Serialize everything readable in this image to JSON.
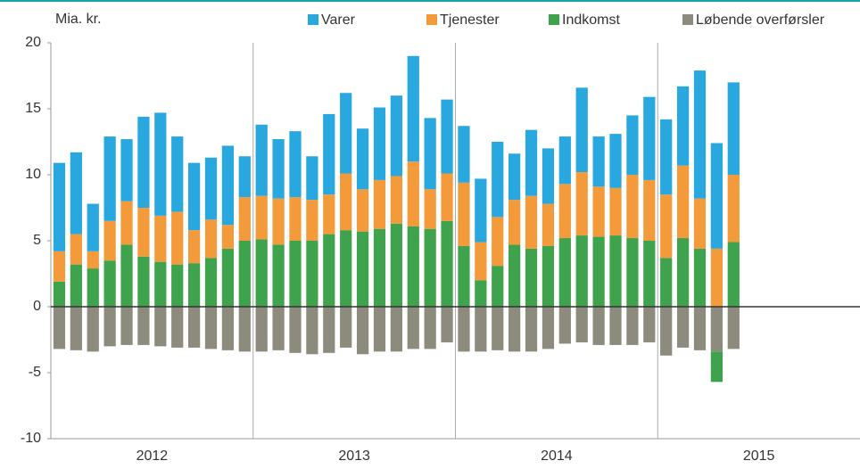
{
  "chart_data": {
    "type": "stacked_bar",
    "y_unit_label": "Mia. kr.",
    "categories": [
      null,
      null,
      null,
      null,
      null,
      null,
      null,
      null,
      null,
      null,
      null,
      null,
      null,
      null,
      null,
      null,
      null,
      null,
      null,
      null,
      null,
      null,
      null,
      null,
      null,
      null,
      null,
      null,
      null,
      null,
      null,
      null,
      null,
      null,
      null,
      null,
      null,
      null,
      null,
      null,
      null
    ],
    "year_labels": [
      "2012",
      "2013",
      "2014",
      "2015"
    ],
    "series": [
      {
        "name": "Varer",
        "color": "#29a8e0",
        "values": [
          6.7,
          6.2,
          3.6,
          6.4,
          4.7,
          6.9,
          7.8,
          5.7,
          5.1,
          4.7,
          6.0,
          3.1,
          5.4,
          4.5,
          5.0,
          3.3,
          6.1,
          6.1,
          4.6,
          5.5,
          6.1,
          8.0,
          5.4,
          5.6,
          4.3,
          4.8,
          5.7,
          3.5,
          5.0,
          4.2,
          3.6,
          6.4,
          3.8,
          4.1,
          4.5,
          6.3,
          5.7,
          6.0,
          9.7,
          8.0,
          7.0
        ]
      },
      {
        "name": "Tjenester",
        "color": "#f39a3b",
        "values": [
          2.3,
          2.3,
          1.3,
          3.0,
          3.3,
          3.7,
          3.5,
          4.0,
          2.5,
          2.9,
          1.8,
          3.3,
          3.3,
          3.5,
          3.3,
          3.1,
          3.0,
          4.3,
          3.2,
          3.7,
          3.6,
          4.9,
          3.0,
          3.6,
          4.8,
          2.9,
          3.7,
          3.4,
          4.0,
          3.2,
          4.1,
          4.8,
          3.8,
          3.6,
          4.8,
          4.6,
          4.8,
          5.5,
          3.8,
          4.4,
          5.1
        ]
      },
      {
        "name": "Indkomst",
        "color": "#3fa34d",
        "values": [
          1.9,
          3.2,
          2.9,
          3.5,
          4.7,
          3.8,
          3.4,
          3.2,
          3.3,
          3.7,
          4.4,
          5.0,
          5.1,
          4.7,
          5.0,
          5.0,
          5.5,
          5.8,
          5.7,
          5.9,
          6.3,
          6.1,
          5.9,
          6.5,
          4.6,
          2.0,
          3.1,
          4.7,
          4.4,
          4.6,
          5.2,
          5.4,
          5.3,
          5.4,
          5.2,
          5.0,
          3.7,
          5.2,
          4.4,
          -2.3,
          4.9
        ]
      },
      {
        "name": "Løbende overførsler",
        "color": "#8d8a7e",
        "values": [
          -3.2,
          -3.3,
          -3.4,
          -3.0,
          -2.9,
          -2.9,
          -3.0,
          -3.1,
          -3.1,
          -3.2,
          -3.3,
          -3.4,
          -3.4,
          -3.3,
          -3.5,
          -3.6,
          -3.5,
          -3.1,
          -3.6,
          -3.4,
          -3.4,
          -3.2,
          -3.2,
          -2.7,
          -3.4,
          -3.4,
          -3.3,
          -3.4,
          -3.4,
          -3.2,
          -2.8,
          -2.7,
          -2.9,
          -2.9,
          -2.9,
          -2.7,
          -3.7,
          -3.1,
          -3.3,
          -3.4,
          -3.2
        ]
      }
    ],
    "ylim": [
      -10,
      20
    ],
    "yticks": [
      -10,
      -5,
      0,
      5,
      10,
      15,
      20
    ],
    "legend": "top"
  }
}
